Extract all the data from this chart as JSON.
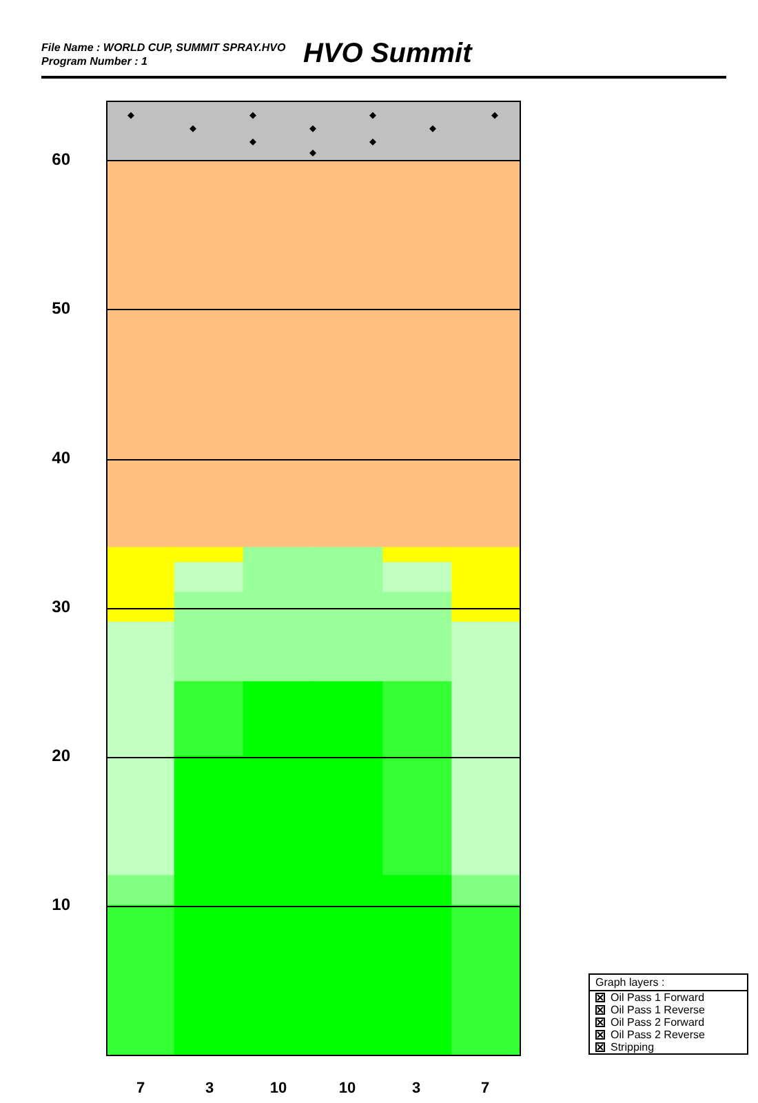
{
  "chart_data": {
    "type": "bar",
    "title": "HVO Summit",
    "stacked": true,
    "grid": "y",
    "legend": false,
    "categories": [
      "7",
      "3",
      "10",
      "10",
      "3",
      "7"
    ],
    "ylim": [
      0,
      64
    ],
    "yticks": [
      10,
      20,
      30,
      40,
      50,
      60
    ],
    "series": [
      {
        "color": "#00ff00",
        "values": [
          null,
          20,
          25,
          25,
          12,
          null
        ]
      },
      {
        "color": "#33ff33",
        "values": [
          10,
          5,
          null,
          null,
          13,
          10
        ]
      },
      {
        "color": "#80ff80",
        "values": [
          2,
          null,
          null,
          null,
          null,
          2
        ]
      },
      {
        "color": "#99ff99",
        "values": [
          null,
          6,
          9,
          9,
          6,
          null
        ]
      },
      {
        "color": "#c0ffc0",
        "values": [
          17,
          2,
          null,
          null,
          2,
          17
        ]
      },
      {
        "color": "#ffff00",
        "values": [
          5,
          1,
          null,
          null,
          1,
          5
        ]
      }
    ],
    "bands": [
      {
        "axis": "y",
        "from": 34,
        "to": 60,
        "color": "#ffc080"
      },
      {
        "axis": "y",
        "from": 60,
        "to": 64,
        "color": "#c0c0c0"
      }
    ],
    "annotations": [
      "File Name : WORLD CUP, SUMMIT SPRAY.HVO",
      "Program Number : 1",
      "Graph layers :",
      "Oil Pass 1 Forward",
      "Oil Pass 1 Reverse",
      "Oil Pass 2 Forward",
      "Oil Pass 2 Reverse",
      "Stripping"
    ]
  }
}
